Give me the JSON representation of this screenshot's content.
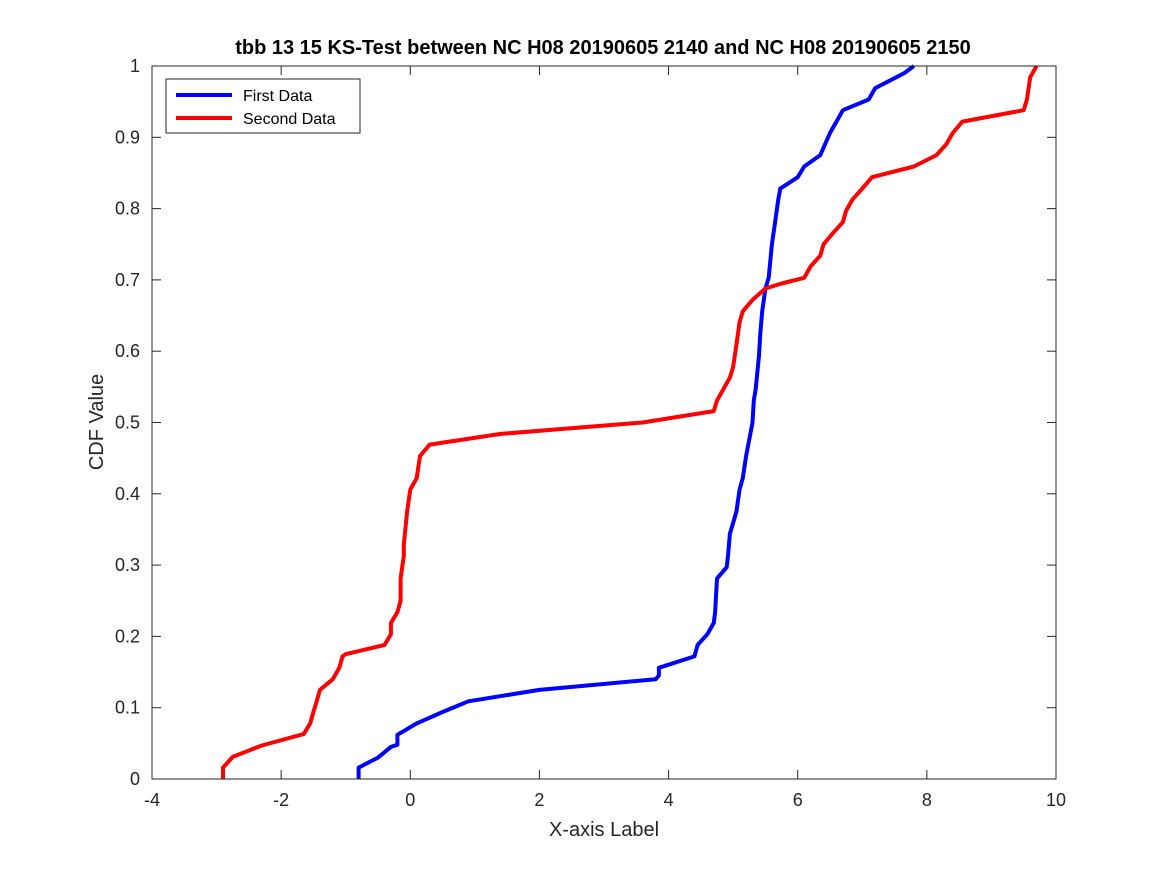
{
  "chart_data": {
    "type": "line",
    "title": "tbb 13 15 KS-Test between NC H08 20190605 2140 and NC H08 20190605 2150",
    "xlabel": "X-axis Label",
    "ylabel": "CDF Value",
    "xlim": [
      -4,
      10
    ],
    "ylim": [
      0,
      1
    ],
    "xticks": [
      -4,
      -2,
      0,
      2,
      4,
      6,
      8,
      10
    ],
    "yticks": [
      0,
      0.1,
      0.2,
      0.3,
      0.4,
      0.5,
      0.6,
      0.7,
      0.8,
      0.9,
      1
    ],
    "xtick_labels": [
      "-4",
      "-2",
      "0",
      "2",
      "4",
      "6",
      "8",
      "10"
    ],
    "ytick_labels": [
      "0",
      "0.1",
      "0.2",
      "0.3",
      "0.4",
      "0.5",
      "0.6",
      "0.7",
      "0.8",
      "0.9",
      "1"
    ],
    "grid": false,
    "legend_position": "top-left",
    "series": [
      {
        "name": "First Data",
        "color": "#0000ff",
        "x": [
          -0.8,
          -0.8,
          -0.5,
          -0.3,
          -0.2,
          -0.2,
          0.1,
          0.5,
          0.9,
          2.0,
          3.8,
          3.85,
          3.85,
          4.4,
          4.45,
          4.6,
          4.7,
          4.72,
          4.75,
          4.9,
          4.92,
          4.95,
          5.0,
          5.05,
          5.1,
          5.15,
          5.2,
          5.3,
          5.32,
          5.35,
          5.4,
          5.42,
          5.45,
          5.5,
          5.55,
          5.6,
          5.65,
          5.7,
          5.73,
          5.85,
          6.0,
          6.1,
          6.35,
          6.5,
          6.7,
          7.1,
          7.2,
          7.65,
          7.8
        ],
        "y": [
          0.0,
          0.016,
          0.03,
          0.045,
          0.048,
          0.062,
          0.078,
          0.094,
          0.109,
          0.125,
          0.14,
          0.145,
          0.156,
          0.172,
          0.188,
          0.203,
          0.219,
          0.234,
          0.281,
          0.297,
          0.313,
          0.344,
          0.359,
          0.375,
          0.406,
          0.422,
          0.453,
          0.5,
          0.531,
          0.547,
          0.594,
          0.625,
          0.656,
          0.688,
          0.703,
          0.75,
          0.781,
          0.813,
          0.828,
          0.835,
          0.844,
          0.859,
          0.875,
          0.906,
          0.938,
          0.953,
          0.969,
          0.99,
          1.0
        ]
      },
      {
        "name": "Second Data",
        "color": "#ff0000",
        "x": [
          -2.9,
          -2.9,
          -2.75,
          -2.3,
          -1.65,
          -1.55,
          -1.5,
          -1.45,
          -1.4,
          -1.2,
          -1.1,
          -1.05,
          -1.0,
          -0.4,
          -0.3,
          -0.3,
          -0.2,
          -0.15,
          -0.15,
          -0.1,
          -0.1,
          -0.05,
          0.0,
          0.1,
          0.15,
          0.3,
          1.4,
          3.6,
          4.7,
          4.75,
          4.85,
          4.95,
          5.0,
          5.05,
          5.1,
          5.15,
          5.3,
          5.5,
          5.75,
          6.1,
          6.2,
          6.35,
          6.4,
          6.55,
          6.7,
          6.75,
          6.85,
          7.0,
          7.15,
          7.8,
          8.15,
          8.3,
          8.4,
          8.55,
          9.5,
          9.55,
          9.6,
          9.7
        ],
        "y": [
          0.0,
          0.016,
          0.031,
          0.047,
          0.063,
          0.078,
          0.094,
          0.109,
          0.125,
          0.14,
          0.156,
          0.172,
          0.175,
          0.188,
          0.203,
          0.219,
          0.234,
          0.25,
          0.281,
          0.313,
          0.328,
          0.375,
          0.406,
          0.422,
          0.453,
          0.469,
          0.484,
          0.5,
          0.516,
          0.531,
          0.547,
          0.563,
          0.578,
          0.609,
          0.641,
          0.656,
          0.672,
          0.688,
          0.695,
          0.703,
          0.719,
          0.734,
          0.75,
          0.766,
          0.781,
          0.797,
          0.813,
          0.828,
          0.844,
          0.859,
          0.875,
          0.89,
          0.906,
          0.922,
          0.938,
          0.953,
          0.984,
          1.0
        ]
      }
    ]
  }
}
